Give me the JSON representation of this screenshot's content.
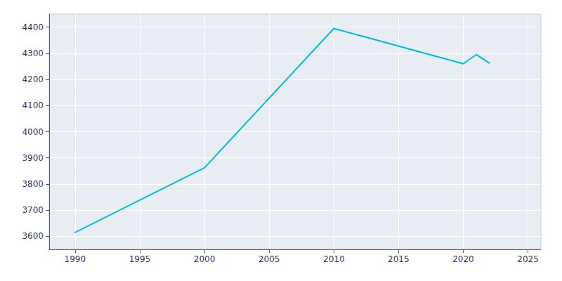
{
  "chart_data": {
    "type": "line",
    "x": [
      1990,
      2000,
      2010,
      2020,
      2021,
      2022
    ],
    "values": [
      3615,
      3862,
      4395,
      4260,
      4295,
      4263
    ],
    "color": "#00BCD4",
    "xlim": [
      1988,
      2026
    ],
    "ylim": [
      3550,
      4450
    ],
    "xticks": [
      1990,
      1995,
      2000,
      2005,
      2010,
      2015,
      2020,
      2025
    ],
    "yticks": [
      3600,
      3700,
      3800,
      3900,
      4000,
      4100,
      4200,
      4300,
      4400
    ],
    "grid": true
  }
}
